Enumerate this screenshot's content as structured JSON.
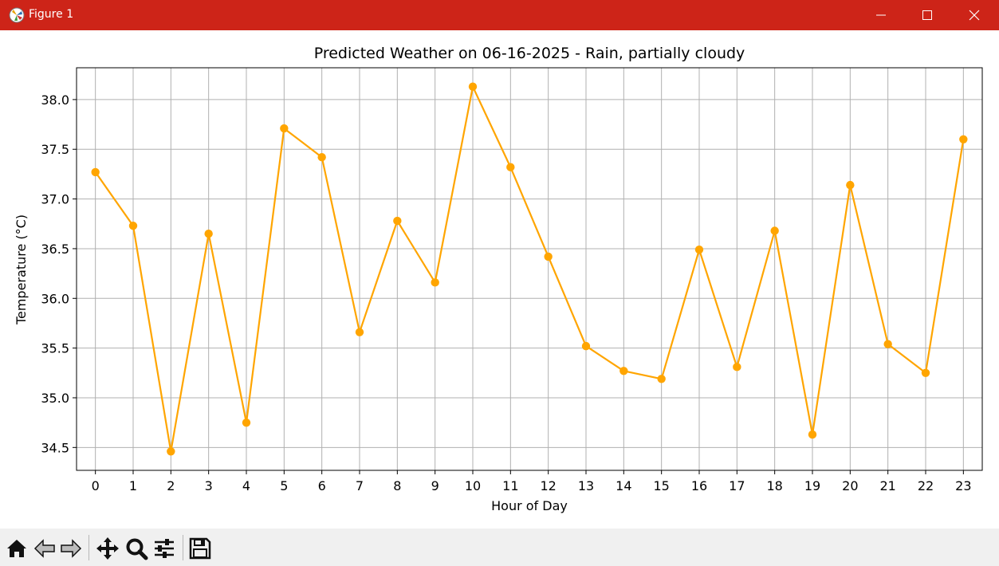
{
  "window": {
    "title": "Figure 1"
  },
  "chart_data": {
    "type": "line",
    "title": "Predicted Weather on 06-16-2025 - Rain, partially cloudy",
    "xlabel": "Hour of Day",
    "ylabel": "Temperature (°C)",
    "x": [
      0,
      1,
      2,
      3,
      4,
      5,
      6,
      7,
      8,
      9,
      10,
      11,
      12,
      13,
      14,
      15,
      16,
      17,
      18,
      19,
      20,
      21,
      22,
      23
    ],
    "series": [
      {
        "name": "",
        "color": "#ffa500",
        "values": [
          37.27,
          36.73,
          34.46,
          36.65,
          34.75,
          37.71,
          37.42,
          35.66,
          36.78,
          36.16,
          38.13,
          37.32,
          36.42,
          35.52,
          35.27,
          35.19,
          36.49,
          35.31,
          36.68,
          34.63,
          37.14,
          35.54,
          35.25,
          37.6
        ]
      }
    ],
    "xticks": [
      "0",
      "1",
      "2",
      "3",
      "4",
      "5",
      "6",
      "7",
      "8",
      "9",
      "10",
      "11",
      "12",
      "13",
      "14",
      "15",
      "16",
      "17",
      "18",
      "19",
      "20",
      "21",
      "22",
      "23"
    ],
    "yticks": [
      "34.5",
      "35.0",
      "35.5",
      "36.0",
      "36.5",
      "37.0",
      "37.5",
      "38.0"
    ],
    "ytick_values": [
      34.5,
      35.0,
      35.5,
      36.0,
      36.5,
      37.0,
      37.5,
      38.0
    ],
    "xlim": [
      -0.5,
      23.5
    ],
    "ylim": [
      34.27,
      38.32
    ],
    "grid": true
  },
  "toolbar": {
    "items": [
      {
        "name": "home-button",
        "icon": "home-icon"
      },
      {
        "name": "back-button",
        "icon": "arrow-left-icon"
      },
      {
        "name": "forward-button",
        "icon": "arrow-right-icon"
      },
      {
        "name": "pan-button",
        "icon": "move-icon"
      },
      {
        "name": "zoom-button",
        "icon": "magnifier-icon"
      },
      {
        "name": "configure-subplots-button",
        "icon": "sliders-icon"
      },
      {
        "name": "save-button",
        "icon": "floppy-disk-icon"
      }
    ]
  },
  "colors": {
    "titlebar": "#cd2418",
    "line": "#ffa500",
    "grid": "#b0b0b0",
    "toolbar": "#f0f0f0"
  }
}
